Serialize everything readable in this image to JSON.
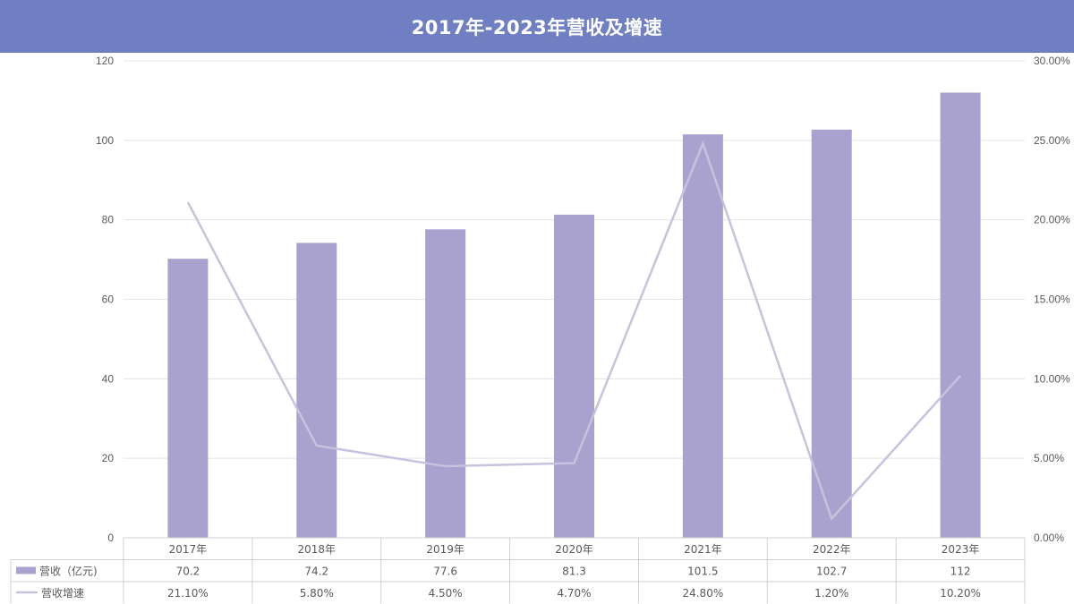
{
  "chart_data": {
    "type": "bar",
    "title": "2017年-2023年营收及增速",
    "categories": [
      "2017年",
      "2018年",
      "2019年",
      "2020年",
      "2021年",
      "2022年",
      "2023年"
    ],
    "series": [
      {
        "name": "营收（亿元)",
        "type": "bar",
        "axis": "left",
        "values": [
          70.2,
          74.2,
          77.6,
          81.3,
          101.5,
          102.7,
          112
        ],
        "labels": [
          "70.2",
          "74.2",
          "77.6",
          "81.3",
          "101.5",
          "102.7",
          "112"
        ],
        "color": "#a9a2cf"
      },
      {
        "name": "营收增速",
        "type": "line",
        "axis": "right",
        "values": [
          0.211,
          0.058,
          0.045,
          0.047,
          0.248,
          0.012,
          0.102
        ],
        "labels": [
          "21.10%",
          "5.80%",
          "4.50%",
          "4.70%",
          "24.80%",
          "1.20%",
          "10.20%"
        ],
        "color": "#c5c3dd"
      }
    ],
    "y_left": {
      "range": [
        0,
        120
      ],
      "ticks": [
        "0",
        "20",
        "40",
        "60",
        "80",
        "100",
        "120"
      ]
    },
    "y_right": {
      "range": [
        0,
        0.3
      ],
      "ticks": [
        "0.00%",
        "5.00%",
        "10.00%",
        "15.00%",
        "20.00%",
        "25.00%",
        "30.00%"
      ]
    },
    "grid": true,
    "legend": "data-table"
  }
}
